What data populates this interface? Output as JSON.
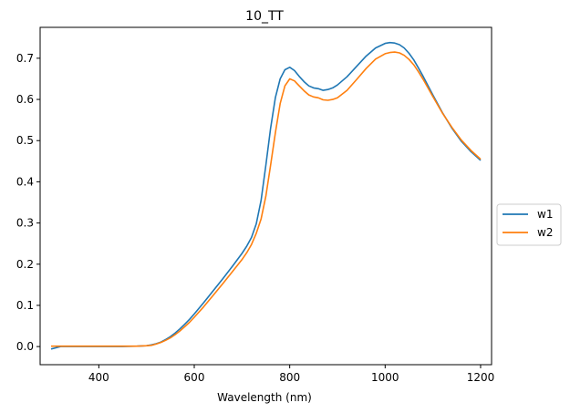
{
  "chart_data": {
    "type": "line",
    "title": "10_TT",
    "xlabel": "Wavelength (nm)",
    "ylabel": "",
    "xlim": [
      277,
      1223
    ],
    "ylim": [
      -0.044,
      0.775
    ],
    "xticks": [
      400,
      600,
      800,
      1000,
      1200
    ],
    "yticks": [
      0.0,
      0.1,
      0.2,
      0.3,
      0.4,
      0.5,
      0.6,
      0.7
    ],
    "xtick_labels": [
      "400",
      "600",
      "800",
      "1000",
      "1200"
    ],
    "ytick_labels": [
      "0.0",
      "0.1",
      "0.2",
      "0.3",
      "0.4",
      "0.5",
      "0.6",
      "0.7"
    ],
    "grid": false,
    "legend_position": "center-right outside",
    "x": [
      300,
      320,
      350,
      400,
      450,
      480,
      500,
      510,
      520,
      530,
      540,
      550,
      560,
      570,
      580,
      590,
      600,
      620,
      640,
      660,
      680,
      700,
      710,
      720,
      730,
      740,
      750,
      760,
      770,
      780,
      790,
      800,
      810,
      820,
      830,
      840,
      850,
      860,
      870,
      880,
      890,
      900,
      920,
      940,
      960,
      980,
      1000,
      1010,
      1020,
      1030,
      1040,
      1050,
      1060,
      1070,
      1080,
      1100,
      1120,
      1140,
      1160,
      1180,
      1200
    ],
    "series": [
      {
        "name": "w1",
        "color": "#1f77b4",
        "values": [
          -0.006,
          0.0,
          0.0,
          0.0,
          0.0,
          0.001,
          0.002,
          0.004,
          0.007,
          0.011,
          0.017,
          0.024,
          0.033,
          0.043,
          0.054,
          0.066,
          0.079,
          0.107,
          0.136,
          0.165,
          0.195,
          0.226,
          0.244,
          0.265,
          0.298,
          0.355,
          0.44,
          0.53,
          0.605,
          0.65,
          0.672,
          0.678,
          0.67,
          0.656,
          0.643,
          0.633,
          0.628,
          0.626,
          0.622,
          0.624,
          0.628,
          0.635,
          0.655,
          0.68,
          0.705,
          0.725,
          0.736,
          0.738,
          0.737,
          0.733,
          0.725,
          0.712,
          0.696,
          0.676,
          0.655,
          0.611,
          0.568,
          0.53,
          0.498,
          0.473,
          0.452
        ]
      },
      {
        "name": "w2",
        "color": "#ff7f0e",
        "values": [
          0.001,
          0.001,
          0.001,
          0.001,
          0.001,
          0.001,
          0.002,
          0.003,
          0.006,
          0.01,
          0.015,
          0.021,
          0.029,
          0.038,
          0.048,
          0.059,
          0.071,
          0.097,
          0.125,
          0.153,
          0.182,
          0.211,
          0.228,
          0.248,
          0.275,
          0.31,
          0.365,
          0.44,
          0.52,
          0.59,
          0.633,
          0.65,
          0.645,
          0.633,
          0.621,
          0.611,
          0.606,
          0.604,
          0.599,
          0.598,
          0.6,
          0.604,
          0.622,
          0.648,
          0.675,
          0.698,
          0.711,
          0.714,
          0.715,
          0.713,
          0.707,
          0.697,
          0.684,
          0.667,
          0.648,
          0.607,
          0.567,
          0.532,
          0.501,
          0.476,
          0.455
        ]
      }
    ]
  }
}
